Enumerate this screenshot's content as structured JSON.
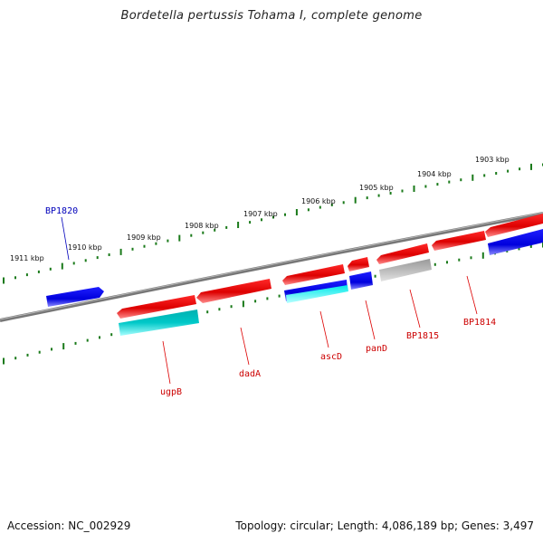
{
  "title": "Bordetella pertussis Tohama I, complete genome",
  "footer": {
    "accession": "Accession: NC_002929",
    "summary": "Topology: circular; Length: 4,086,189 bp; Genes: 3,497"
  },
  "colors": {
    "backbone": "#808080",
    "tick_ring": "#1a7a1a",
    "forward_gene": "#ee0000",
    "reverse_gene": "#0000ee",
    "rna_gene": "#00cccc",
    "other_feature": "#aaaaaa",
    "forward_label": "#cc0000",
    "reverse_label": "#0000bb"
  },
  "scale_labels": [
    "1911 kbp",
    "1910 kbp",
    "1909 kbp",
    "1908 kbp",
    "1907 kbp",
    "1906 kbp",
    "1905 kbp",
    "1904 kbp",
    "1903 kbp"
  ],
  "gene_labels": {
    "BP1820": "BP1820",
    "ugpB": "ugpB",
    "dadA": "dadA",
    "ascD": "ascD",
    "panD": "panD",
    "BP1815": "BP1815",
    "BP1814": "BP1814"
  }
}
